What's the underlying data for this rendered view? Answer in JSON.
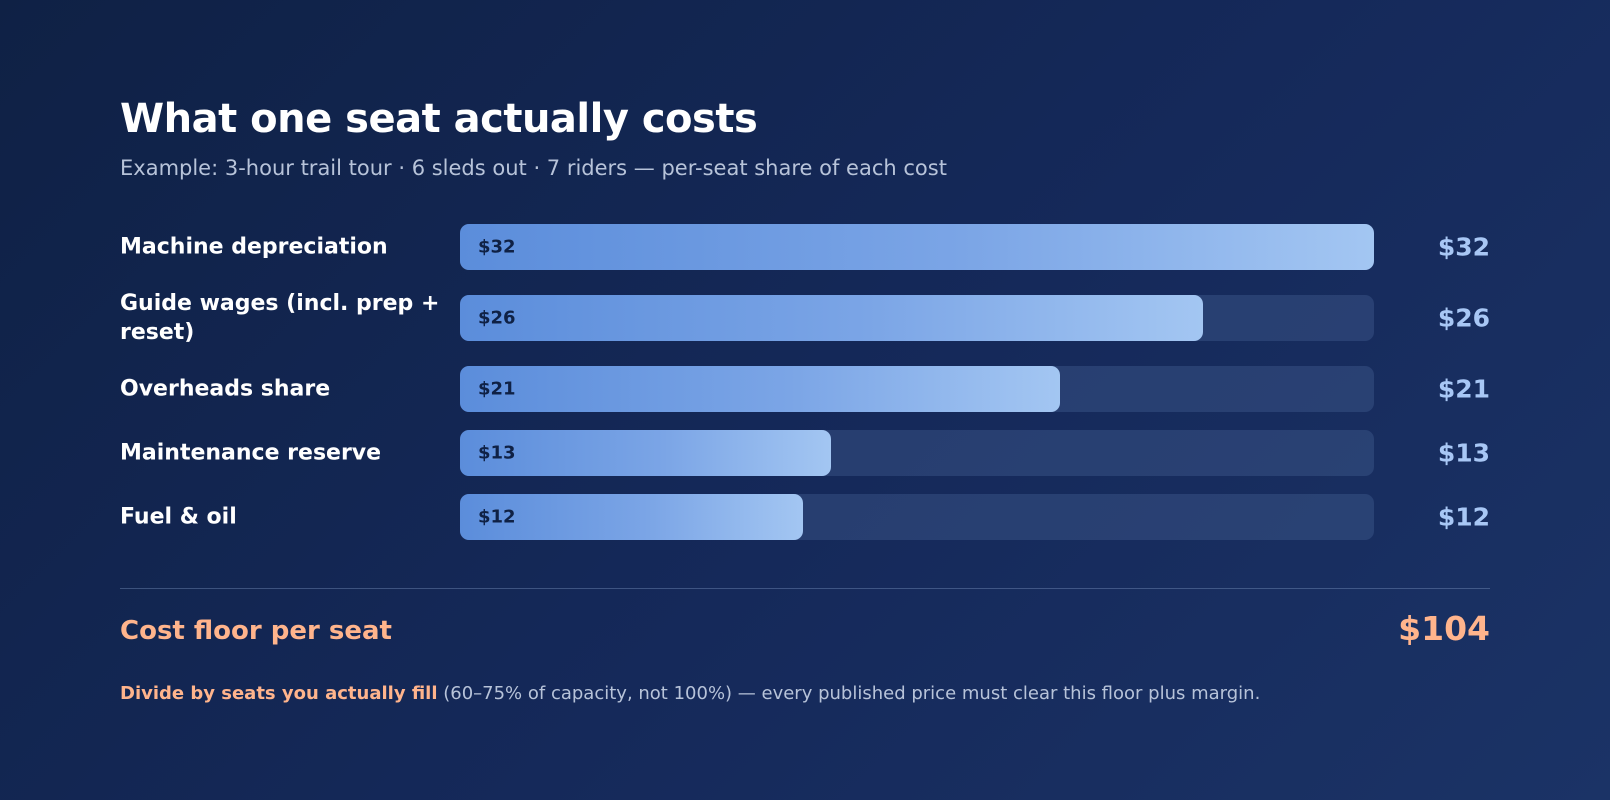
{
  "title": "What one seat actually costs",
  "subtitle": "Example: 3-hour trail tour · 6 sleds out · 7 riders — per-seat share of each cost",
  "total": {
    "label": "Cost floor per seat",
    "value": "$104"
  },
  "note": {
    "strong": "Divide by seats you actually fill",
    "rest": " (60–75% of capacity, not 100%) — every published price must clear this floor plus margin."
  },
  "colors": {
    "accent": "#ffb48c",
    "bar_start": "#5b8ddb",
    "bar_end": "#a3c6f2",
    "value_text": "#a8c7f5",
    "background": "#0f2145"
  },
  "chart_data": {
    "type": "bar",
    "orientation": "horizontal",
    "title": "What one seat actually costs",
    "subtitle": "Example: 3-hour trail tour · 6 sleds out · 7 riders — per-seat share of each cost",
    "categories": [
      "Machine depreciation",
      "Guide wages (incl. prep + reset)",
      "Overheads share",
      "Maintenance reserve",
      "Fuel & oil"
    ],
    "values": [
      32,
      26,
      21,
      13,
      12
    ],
    "value_labels": [
      "$32",
      "$26",
      "$21",
      "$13",
      "$12"
    ],
    "xlim": [
      0,
      32
    ],
    "grid": false,
    "legend": "none"
  }
}
